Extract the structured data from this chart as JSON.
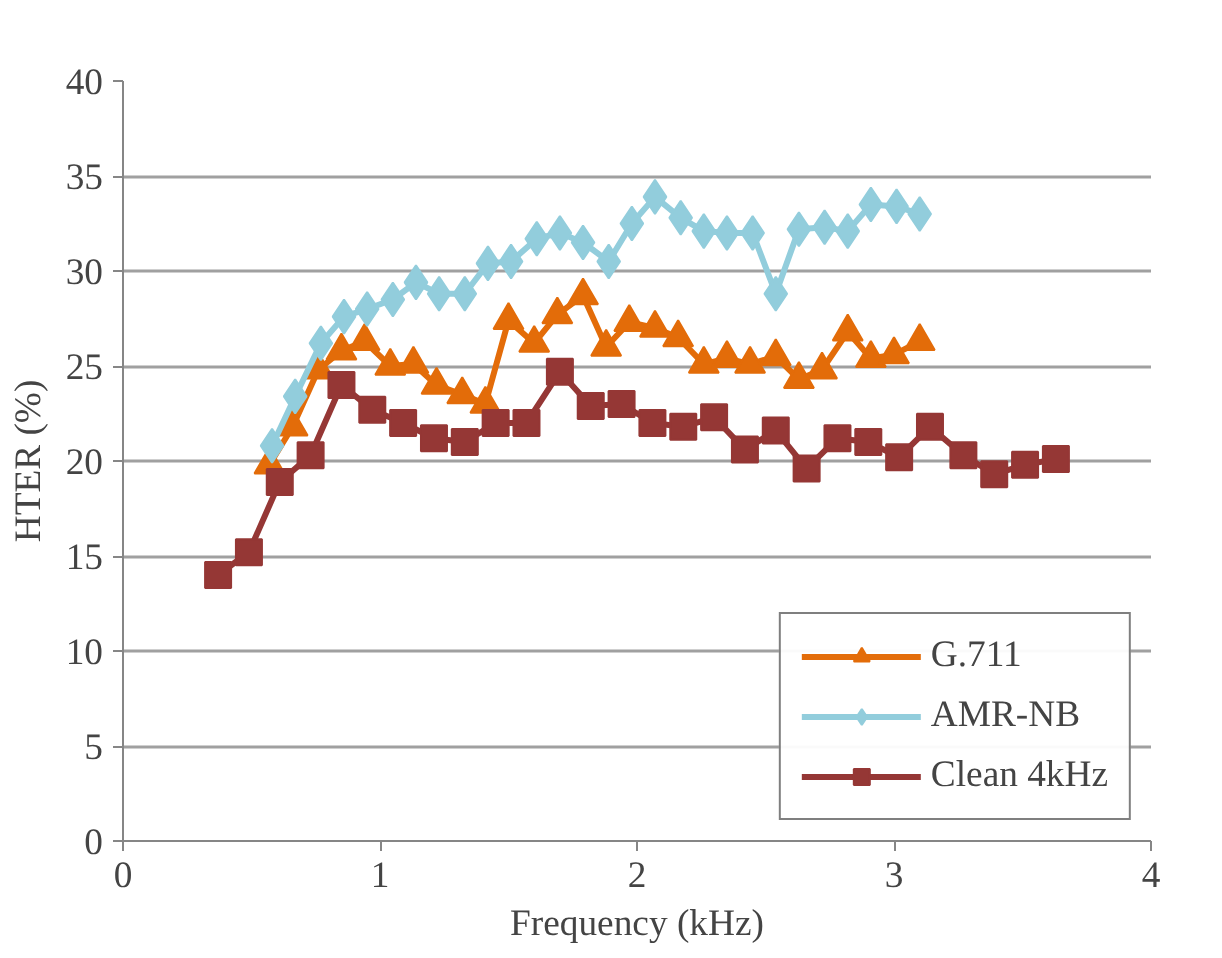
{
  "chart_data": {
    "type": "line",
    "xlabel": "Frequency (kHz)",
    "ylabel": "HTER (%)",
    "xlim": [
      0,
      4
    ],
    "xticks": [
      0,
      1,
      2,
      3,
      4
    ],
    "ylim": [
      0,
      40
    ],
    "yticks": [
      0,
      5,
      10,
      15,
      20,
      25,
      30,
      35,
      40
    ],
    "grid": "y",
    "legend": "bottom right",
    "line_style": "solid",
    "series": [
      {
        "name": "G.711",
        "color": "#e36c09",
        "marker": "triangle",
        "x": [
          0.57,
          0.66,
          0.76,
          0.85,
          0.94,
          1.04,
          1.13,
          1.22,
          1.32,
          1.41,
          1.5,
          1.6,
          1.69,
          1.79,
          1.88,
          1.97,
          2.07,
          2.16,
          2.26,
          2.35,
          2.44,
          2.54,
          2.63,
          2.72,
          2.82,
          2.91,
          3.0,
          3.1
        ],
        "values": [
          19.8,
          21.8,
          24.8,
          25.8,
          26.3,
          25.0,
          25.1,
          24.0,
          23.5,
          23.0,
          27.4,
          26.2,
          27.7,
          28.7,
          26.0,
          27.3,
          27.0,
          26.5,
          25.1,
          25.4,
          25.1,
          25.5,
          24.3,
          24.8,
          26.8,
          25.4,
          25.6,
          26.3
        ]
      },
      {
        "name": "AMR-NB",
        "color": "#92cddc",
        "marker": "diamond",
        "x": [
          0.58,
          0.67,
          0.77,
          0.86,
          0.95,
          1.05,
          1.14,
          1.23,
          1.33,
          1.42,
          1.51,
          1.61,
          1.7,
          1.79,
          1.89,
          1.98,
          2.07,
          2.17,
          2.26,
          2.35,
          2.45,
          2.54,
          2.63,
          2.73,
          2.82,
          2.91,
          3.01,
          3.1
        ],
        "values": [
          20.8,
          23.4,
          26.2,
          27.6,
          28.0,
          28.5,
          29.4,
          28.8,
          28.8,
          30.4,
          30.5,
          31.7,
          32.0,
          31.5,
          30.5,
          32.5,
          33.9,
          32.8,
          32.1,
          32.0,
          32.0,
          28.8,
          32.2,
          32.3,
          32.1,
          33.5,
          33.4,
          33.0
        ]
      },
      {
        "name": "Clean 4kHz",
        "color": "#953735",
        "marker": "square",
        "x": [
          0.37,
          0.49,
          0.61,
          0.73,
          0.85,
          0.97,
          1.09,
          1.21,
          1.33,
          1.45,
          1.57,
          1.7,
          1.82,
          1.94,
          2.06,
          2.18,
          2.3,
          2.42,
          2.54,
          2.66,
          2.78,
          2.9,
          3.02,
          3.14,
          3.27,
          3.39,
          3.51,
          3.63
        ],
        "values": [
          14.0,
          15.2,
          18.9,
          20.3,
          24.0,
          22.7,
          22.0,
          21.2,
          21.0,
          22.0,
          22.0,
          24.7,
          22.9,
          23.0,
          22.0,
          21.8,
          22.3,
          20.6,
          21.6,
          19.6,
          21.2,
          21.0,
          20.2,
          21.8,
          20.3,
          19.3,
          19.8,
          20.1
        ]
      }
    ]
  }
}
